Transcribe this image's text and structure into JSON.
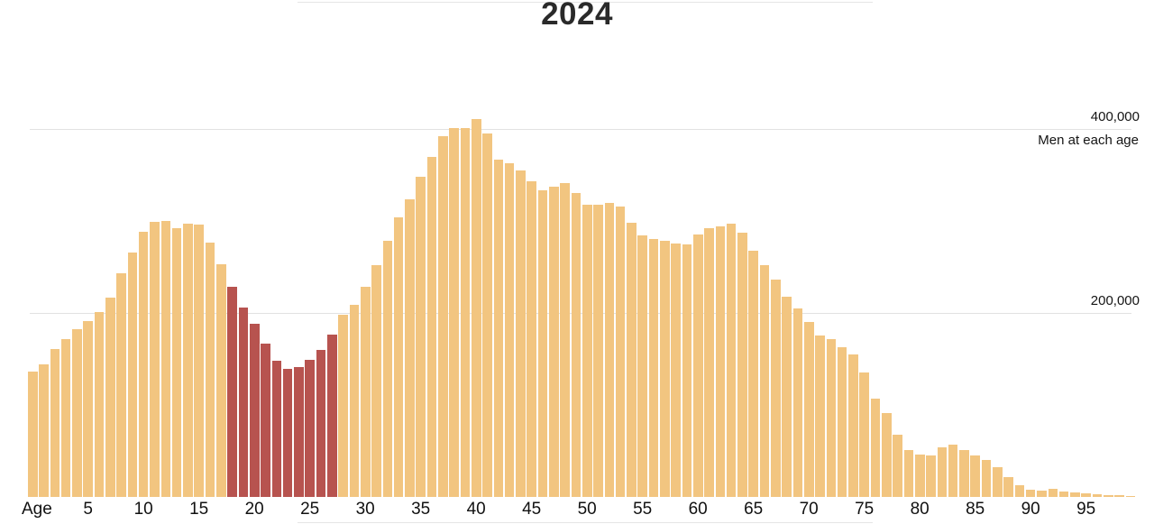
{
  "title": "2024",
  "axis": {
    "x_label": "Age",
    "x_ticks": [
      5,
      10,
      15,
      20,
      25,
      30,
      35,
      40,
      45,
      50,
      55,
      60,
      65,
      70,
      75,
      80,
      85,
      90,
      95
    ],
    "y_gridlines": [
      {
        "value": 200000,
        "label": "200,000"
      },
      {
        "value": 400000,
        "label": "400,000"
      }
    ],
    "y_annotation": "Men at each age"
  },
  "colors": {
    "bar": "#f2c580",
    "highlight": "#b7534f",
    "grid": "#e2e2e2",
    "rule": "#e5e5e5",
    "text": "#141414"
  },
  "chart_data": {
    "type": "bar",
    "title": "2024",
    "xlabel": "Age",
    "ylabel": "Men at each age",
    "x_range": [
      0,
      99
    ],
    "ylim": [
      0,
      420000
    ],
    "grid": "horizontal",
    "gridline_values": [
      200000,
      400000
    ],
    "legend": "none",
    "highlight_age_range": [
      18,
      27
    ],
    "values": [
      136000,
      144000,
      161000,
      172000,
      182000,
      191000,
      201000,
      217000,
      243000,
      266000,
      288000,
      299000,
      300000,
      292000,
      297000,
      296000,
      277000,
      253000,
      228000,
      206000,
      188000,
      167000,
      148000,
      139000,
      141000,
      149000,
      160000,
      177000,
      198000,
      209000,
      228000,
      252000,
      278000,
      304000,
      324000,
      348000,
      370000,
      392000,
      401000,
      401000,
      411000,
      395000,
      367000,
      363000,
      355000,
      343000,
      333000,
      337000,
      341000,
      330000,
      318000,
      318000,
      320000,
      316000,
      298000,
      284000,
      280000,
      278000,
      276000,
      275000,
      285000,
      292000,
      294000,
      297000,
      287000,
      268000,
      252000,
      236000,
      218000,
      205000,
      190000,
      176000,
      172000,
      163000,
      155000,
      135000,
      107000,
      91000,
      68000,
      51000,
      46000,
      45000,
      54000,
      57000,
      51000,
      45000,
      40000,
      32000,
      22000,
      13000,
      8000,
      7000,
      8500,
      6000,
      5000,
      4000,
      2600,
      2000,
      1600,
      1300
    ]
  }
}
